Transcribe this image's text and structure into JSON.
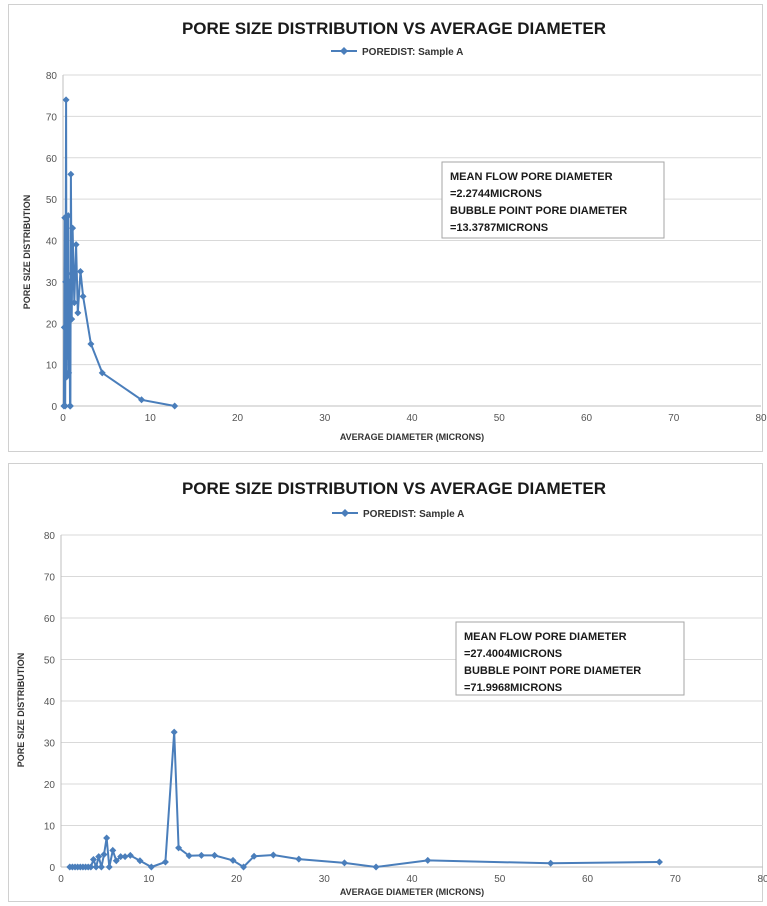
{
  "chart_data": [
    {
      "type": "line",
      "title": "PORE SIZE DISTRIBUTION VS AVERAGE DIAMETER",
      "xlabel": "AVERAGE DIAMETER (MICRONS)",
      "ylabel": "PORE SIZE DISTRIBUTION",
      "xlim": [
        0,
        80
      ],
      "ylim": [
        0,
        80
      ],
      "xticks": [
        0,
        10,
        20,
        30,
        40,
        50,
        60,
        70,
        80
      ],
      "yticks": [
        0,
        10,
        20,
        30,
        40,
        50,
        60,
        70,
        80
      ],
      "grid": "horizontal",
      "legend": "top-center",
      "annotation": [
        "MEAN FLOW PORE DIAMETER",
        "=2.2744MICRONS",
        "BUBBLE POINT PORE DIAMETER",
        "=13.3787MICRONS"
      ],
      "series": [
        {
          "name": "POREDIST: Sample A",
          "color": "#4a7ebb",
          "x": [
            0.1,
            0.15,
            0.2,
            0.25,
            0.3,
            0.35,
            0.4,
            0.45,
            0.5,
            0.55,
            0.6,
            0.65,
            0.7,
            0.75,
            0.8,
            0.85,
            0.9,
            1.0,
            1.1,
            1.3,
            1.5,
            1.7,
            2.0,
            2.3,
            3.2,
            4.5,
            9.0,
            12.8
          ],
          "y": [
            0,
            19,
            45.5,
            0,
            30,
            74,
            7,
            25,
            32,
            12,
            46,
            8,
            22,
            30,
            0,
            0,
            56,
            21,
            43,
            25,
            39,
            22.5,
            32.5,
            26.5,
            15,
            8,
            1.5,
            0
          ]
        }
      ]
    },
    {
      "type": "line",
      "title": "PORE SIZE DISTRIBUTION VS AVERAGE DIAMETER",
      "xlabel": "AVERAGE DIAMETER (MICRONS)",
      "ylabel": "PORE SIZE DISTRIBUTION",
      "xlim": [
        0,
        80
      ],
      "ylim": [
        0,
        80
      ],
      "xticks": [
        0,
        10,
        20,
        30,
        40,
        50,
        60,
        70,
        80
      ],
      "yticks": [
        0,
        10,
        20,
        30,
        40,
        50,
        60,
        70,
        80
      ],
      "grid": "horizontal",
      "legend": "top-center",
      "annotation": [
        "MEAN FLOW PORE DIAMETER",
        "=27.4004MICRONS",
        "BUBBLE POINT PORE DIAMETER",
        "=71.9968MICRONS"
      ],
      "series": [
        {
          "name": "POREDIST: Sample A",
          "color": "#4a7ebb",
          "x": [
            1.0,
            1.3,
            1.6,
            1.9,
            2.2,
            2.5,
            2.8,
            3.1,
            3.4,
            3.7,
            4.0,
            4.3,
            4.6,
            4.9,
            5.2,
            5.5,
            5.9,
            6.3,
            6.8,
            7.3,
            7.9,
            9.0,
            10.3,
            11.9,
            12.9,
            13.4,
            14.6,
            16.0,
            17.5,
            19.6,
            20.8,
            22.0,
            24.2,
            27.1,
            32.3,
            35.9,
            41.8,
            55.8,
            68.2
          ],
          "y": [
            0,
            0,
            0,
            0,
            0,
            0,
            0,
            0,
            0,
            1.8,
            0,
            2.5,
            0,
            3,
            7,
            0,
            4,
            1.5,
            2.5,
            2.5,
            2.8,
            1.5,
            0,
            1.2,
            32.5,
            4.6,
            2.7,
            2.8,
            2.8,
            1.6,
            0,
            2.6,
            2.9,
            1.9,
            1,
            0,
            1.6,
            0.9,
            1.2
          ]
        }
      ]
    }
  ]
}
